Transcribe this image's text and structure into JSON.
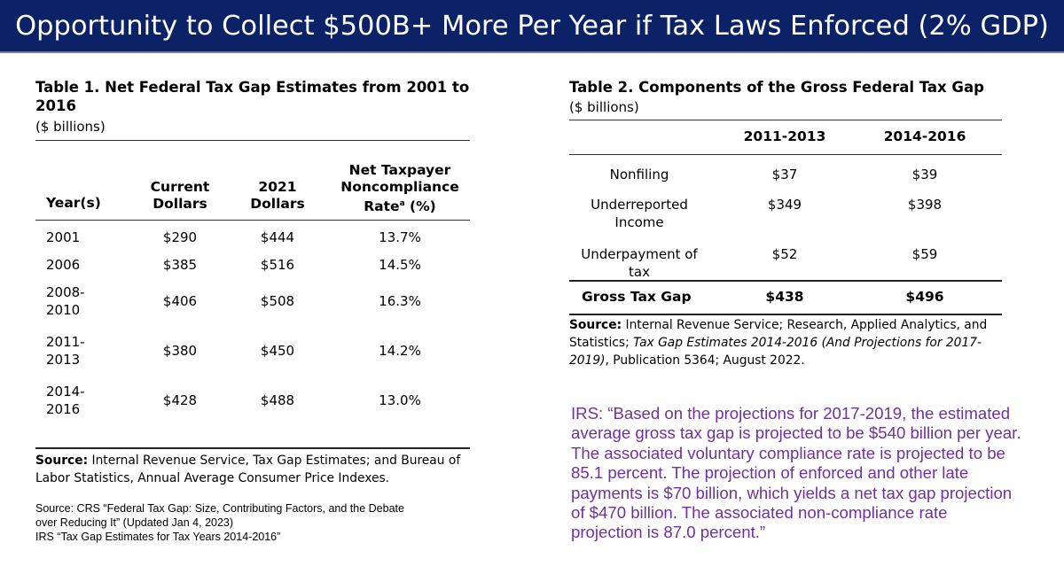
{
  "banner": {
    "title": "Opportunity to Collect $500B+ More Per Year if Tax Laws Enforced (2% GDP)"
  },
  "table1": {
    "title_line1": "Table 1. Net Federal Tax Gap Estimates from 2001 to",
    "title_line2": "2016",
    "units": "($ billions)",
    "headers": {
      "year": "Year(s)",
      "current": [
        "Current",
        "Dollars"
      ],
      "dollars2021": [
        "2021",
        "Dollars"
      ],
      "rate": [
        "Net Taxpayer",
        "Noncompliance",
        "Rate",
        "a",
        " (%)"
      ]
    },
    "rows": [
      {
        "year": [
          "2001"
        ],
        "current": "$290",
        "d2021": "$444",
        "rate": "13.7%"
      },
      {
        "year": [
          "2006"
        ],
        "current": "$385",
        "d2021": "$516",
        "rate": "14.5%"
      },
      {
        "year": [
          "2008-",
          "2010"
        ],
        "current": "$406",
        "d2021": "$508",
        "rate": "16.3%"
      },
      {
        "year": [
          "2011-",
          "2013"
        ],
        "current": "$380",
        "d2021": "$450",
        "rate": "14.2%"
      },
      {
        "year": [
          "2014-",
          "2016"
        ],
        "current": "$428",
        "d2021": "$488",
        "rate": "13.0%"
      }
    ],
    "source_label": "Source:",
    "source_line1": " Internal Revenue Service, Tax Gap Estimates; and Bureau of",
    "source_line2": "Labor Statistics, Annual Average Consumer Price Indexes."
  },
  "table2": {
    "title": "Table 2. Components of the Gross Federal Tax Gap",
    "units": "($ billions)",
    "headers": {
      "col1": "2011-2013",
      "col2": "2014-2016"
    },
    "rows": [
      {
        "label": [
          "Nonfiling"
        ],
        "v1": "$37",
        "v2": "$39"
      },
      {
        "label": [
          "Underreported",
          "Income"
        ],
        "v1": "$349",
        "v2": "$398"
      },
      {
        "label": [
          "Underpayment of",
          "tax"
        ],
        "v1": "$52",
        "v2": "$59"
      }
    ],
    "total": {
      "label": "Gross Tax Gap",
      "v1": "$438",
      "v2": "$496"
    },
    "source_label": "Source:",
    "source_line1": " Internal Revenue Service; Research, Applied Analytics, and",
    "source_line2a": "Statistics; ",
    "source_line2b": "Tax Gap Estimates 2014-2016 (And Projections for 2017-",
    "source_line3a": "2019)",
    "source_line3b": ", Publication 5364; August 2022."
  },
  "note": {
    "line1": "Source:  CRS “Federal Tax Gap:  Size, Contributing Factors, and the Debate",
    "line2": "over Reducing It” (Updated Jan 4, 2023)",
    "line3": "IRS “Tax Gap Estimates for Tax Years 2014-2016”"
  },
  "quote": {
    "lines": [
      "IRS:  “Based on the projections for 2017-2019, the estimated",
      "average gross tax gap is projected to be $540 billion per year.",
      "The associated voluntary compliance rate is projected to be",
      "85.1 percent. The projection of enforced and other late",
      "payments is $70 billion, which yields a net tax gap projection",
      "of $470 billion. The associated non-compliance rate",
      "projection is 87.0 percent.”"
    ]
  },
  "colors": {
    "banner": "#0b2366",
    "quote": "#7030a0"
  }
}
